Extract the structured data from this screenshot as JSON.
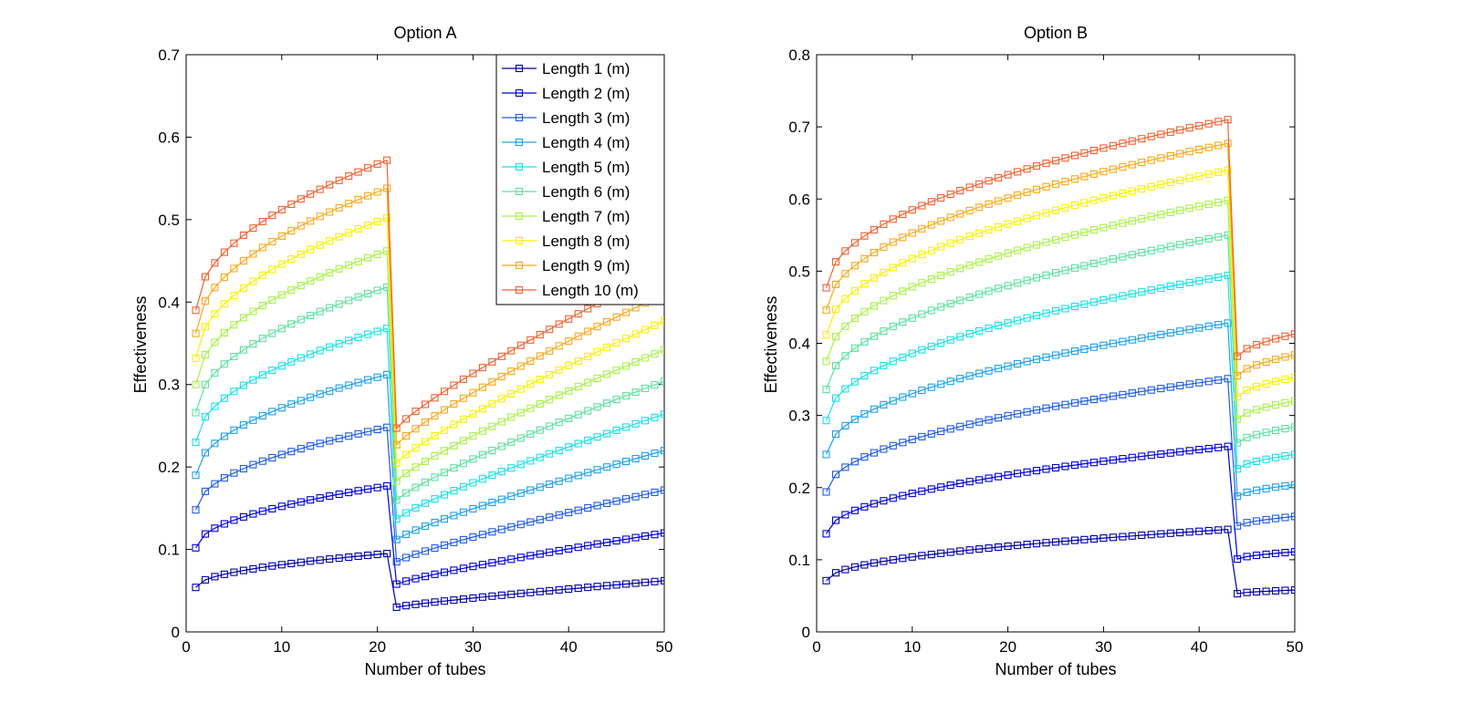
{
  "chart_data": [
    {
      "type": "line",
      "title": "Option A",
      "xlabel": "Number of tubes",
      "ylabel": "Effectiveness",
      "xlim": [
        0,
        50
      ],
      "ylim": [
        0,
        0.7
      ],
      "xticks": [
        "0",
        "10",
        "20",
        "30",
        "40",
        "50"
      ],
      "yticks": [
        "0",
        "0.1",
        "0.2",
        "0.3",
        "0.4",
        "0.5",
        "0.6",
        "0.7"
      ],
      "legend_position": "top-right",
      "grid": false,
      "marker": "square",
      "break_x": 22,
      "x": [
        1,
        2,
        3,
        4,
        5,
        6,
        7,
        8,
        9,
        10,
        11,
        12,
        13,
        14,
        15,
        16,
        17,
        18,
        19,
        20,
        21,
        22,
        23,
        24,
        25,
        26,
        27,
        28,
        29,
        30,
        31,
        32,
        33,
        34,
        35,
        36,
        37,
        38,
        39,
        40,
        41,
        42,
        43,
        44,
        45,
        46,
        47,
        48,
        49,
        50
      ],
      "series": [
        {
          "name": "Length 1 (m)",
          "color": "#0000a8",
          "y_seg1_start": 0.054,
          "y_seg1_end": 0.095,
          "y_seg2_start": 0.03,
          "y_seg2_end": 0.062
        },
        {
          "name": "Length 2 (m)",
          "color": "#0000d8",
          "y_seg1_start": 0.102,
          "y_seg1_end": 0.177,
          "y_seg2_start": 0.058,
          "y_seg2_end": 0.12
        },
        {
          "name": "Length 3 (m)",
          "color": "#1e5ce0",
          "y_seg1_start": 0.148,
          "y_seg1_end": 0.248,
          "y_seg2_start": 0.085,
          "y_seg2_end": 0.172
        },
        {
          "name": "Length 4 (m)",
          "color": "#1ea0e8",
          "y_seg1_start": 0.19,
          "y_seg1_end": 0.312,
          "y_seg2_start": 0.112,
          "y_seg2_end": 0.22
        },
        {
          "name": "Length 5 (m)",
          "color": "#18e0e8",
          "y_seg1_start": 0.23,
          "y_seg1_end": 0.368,
          "y_seg2_start": 0.137,
          "y_seg2_end": 0.264
        },
        {
          "name": "Length 6 (m)",
          "color": "#5ce0a0",
          "y_seg1_start": 0.266,
          "y_seg1_end": 0.418,
          "y_seg2_start": 0.16,
          "y_seg2_end": 0.304
        },
        {
          "name": "Length 7 (m)",
          "color": "#a8f048",
          "y_seg1_start": 0.3,
          "y_seg1_end": 0.462,
          "y_seg2_start": 0.183,
          "y_seg2_end": 0.342
        },
        {
          "name": "Length 8 (m)",
          "color": "#f8f000",
          "y_seg1_start": 0.332,
          "y_seg1_end": 0.502,
          "y_seg2_start": 0.205,
          "y_seg2_end": 0.377
        },
        {
          "name": "Length 9 (m)",
          "color": "#f8a818",
          "y_seg1_start": 0.362,
          "y_seg1_end": 0.538,
          "y_seg2_start": 0.227,
          "y_seg2_end": 0.41
        },
        {
          "name": "Length 10 (m)",
          "color": "#f06030",
          "y_seg1_start": 0.39,
          "y_seg1_end": 0.572,
          "y_seg2_start": 0.247,
          "y_seg2_end": 0.44
        }
      ]
    },
    {
      "type": "line",
      "title": "Option B",
      "xlabel": "Number of tubes",
      "ylabel": "Effectiveness",
      "xlim": [
        0,
        50
      ],
      "ylim": [
        0,
        0.8
      ],
      "xticks": [
        "0",
        "10",
        "20",
        "30",
        "40",
        "50"
      ],
      "yticks": [
        "0",
        "0.1",
        "0.2",
        "0.3",
        "0.4",
        "0.5",
        "0.6",
        "0.7",
        "0.8"
      ],
      "grid": false,
      "marker": "square",
      "break_x": 44,
      "x": [
        1,
        2,
        3,
        4,
        5,
        6,
        7,
        8,
        9,
        10,
        11,
        12,
        13,
        14,
        15,
        16,
        17,
        18,
        19,
        20,
        21,
        22,
        23,
        24,
        25,
        26,
        27,
        28,
        29,
        30,
        31,
        32,
        33,
        34,
        35,
        36,
        37,
        38,
        39,
        40,
        41,
        42,
        43,
        44,
        45,
        46,
        47,
        48,
        49,
        50
      ],
      "series": [
        {
          "name": "Length 1 (m)",
          "color": "#0000a8",
          "y_seg1_start": 0.071,
          "y_seg1_end": 0.142,
          "y_seg2_start": 0.053,
          "y_seg2_end": 0.058
        },
        {
          "name": "Length 2 (m)",
          "color": "#0000d8",
          "y_seg1_start": 0.136,
          "y_seg1_end": 0.257,
          "y_seg2_start": 0.101,
          "y_seg2_end": 0.111
        },
        {
          "name": "Length 3 (m)",
          "color": "#1e5ce0",
          "y_seg1_start": 0.194,
          "y_seg1_end": 0.351,
          "y_seg2_start": 0.147,
          "y_seg2_end": 0.16
        },
        {
          "name": "Length 4 (m)",
          "color": "#1ea0e8",
          "y_seg1_start": 0.246,
          "y_seg1_end": 0.428,
          "y_seg2_start": 0.188,
          "y_seg2_end": 0.204
        },
        {
          "name": "Length 5 (m)",
          "color": "#18e0e8",
          "y_seg1_start": 0.293,
          "y_seg1_end": 0.494,
          "y_seg2_start": 0.226,
          "y_seg2_end": 0.246
        },
        {
          "name": "Length 6 (m)",
          "color": "#5ce0a0",
          "y_seg1_start": 0.336,
          "y_seg1_end": 0.55,
          "y_seg2_start": 0.262,
          "y_seg2_end": 0.284
        },
        {
          "name": "Length 7 (m)",
          "color": "#a8f048",
          "y_seg1_start": 0.375,
          "y_seg1_end": 0.598,
          "y_seg2_start": 0.295,
          "y_seg2_end": 0.32
        },
        {
          "name": "Length 8 (m)",
          "color": "#f8f000",
          "y_seg1_start": 0.412,
          "y_seg1_end": 0.64,
          "y_seg2_start": 0.326,
          "y_seg2_end": 0.353
        },
        {
          "name": "Length 9 (m)",
          "color": "#f8a818",
          "y_seg1_start": 0.446,
          "y_seg1_end": 0.677,
          "y_seg2_start": 0.355,
          "y_seg2_end": 0.384
        },
        {
          "name": "Length 10 (m)",
          "color": "#f06030",
          "y_seg1_start": 0.477,
          "y_seg1_end": 0.71,
          "y_seg2_start": 0.382,
          "y_seg2_end": 0.413
        }
      ]
    }
  ]
}
